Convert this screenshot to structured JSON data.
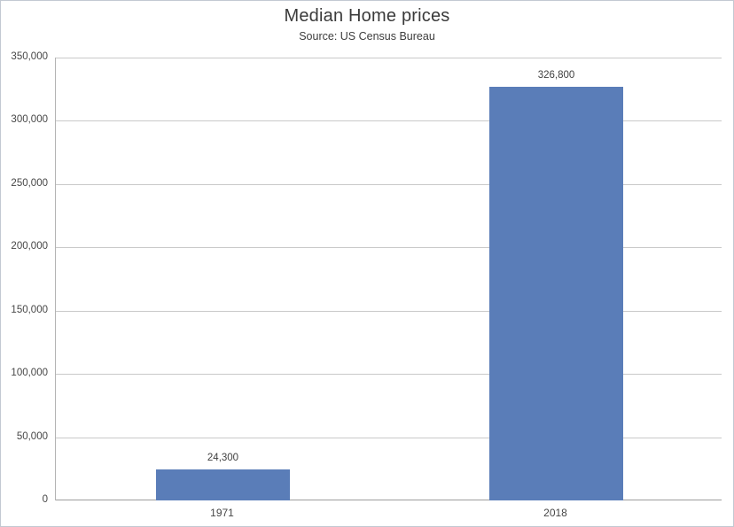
{
  "chart_data": {
    "type": "bar",
    "title": "Median Home prices",
    "subtitle": "Source: US Census Bureau",
    "categories": [
      "1971",
      "2018"
    ],
    "values": [
      24300,
      326800
    ],
    "value_labels": [
      "24,300",
      "326,800"
    ],
    "xlabel": "",
    "ylabel": "",
    "ylim": [
      0,
      350000
    ],
    "ytick_interval": 50000,
    "ytick_labels": [
      "0",
      "50,000",
      "100,000",
      "150,000",
      "200,000",
      "250,000",
      "300,000",
      "350,000"
    ],
    "grid": "horizontal",
    "legend_position": "none",
    "colors": {
      "bar_fill": "#5a7db8",
      "gridline": "#c9c9c9",
      "axis_line": "#9d9d9d",
      "plot_border": "#b3b3b3",
      "text": "#404040",
      "frame_border": "#c3c9d2"
    }
  }
}
